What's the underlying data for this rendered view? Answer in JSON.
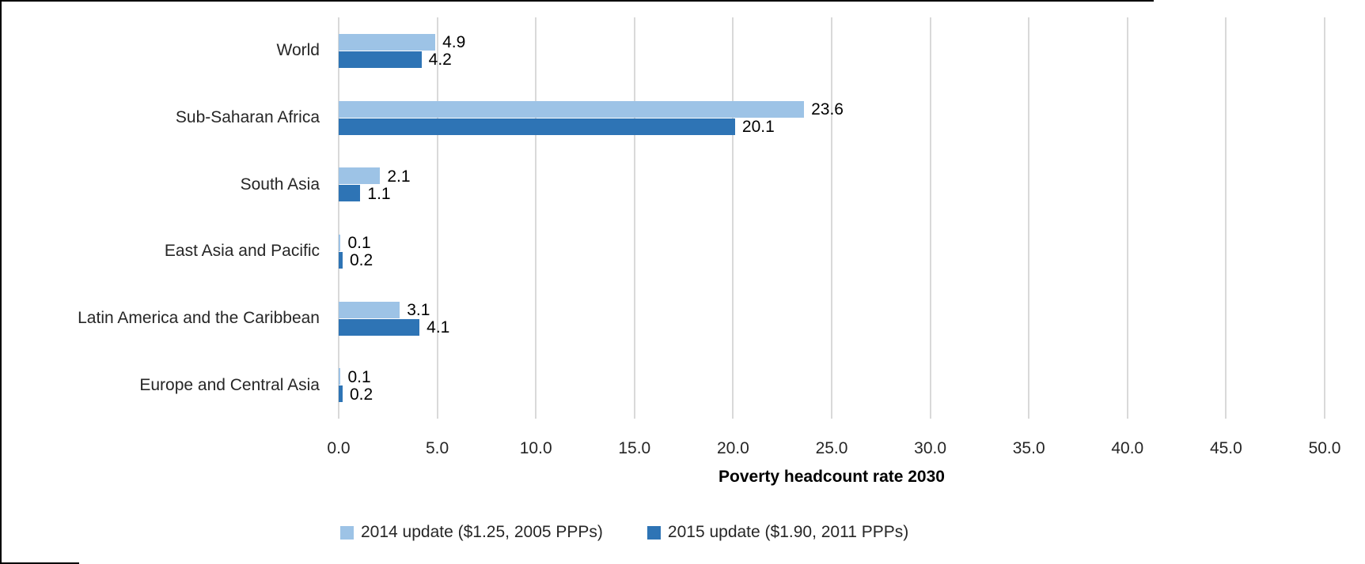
{
  "chart_data": {
    "type": "bar",
    "orientation": "horizontal",
    "title": "",
    "xlabel": "Poverty headcount rate 2030",
    "ylabel": "",
    "xlim": [
      0,
      50
    ],
    "xticks": [
      "0.0",
      "5.0",
      "10.0",
      "15.0",
      "20.0",
      "25.0",
      "30.0",
      "35.0",
      "40.0",
      "45.0",
      "50.0"
    ],
    "grid": "vertical",
    "legend_position": "bottom",
    "categories": [
      "World",
      "Sub-Saharan Africa",
      "South Asia",
      "East Asia and Pacific",
      "Latin America and the Caribbean",
      "Europe and Central Asia"
    ],
    "series": [
      {
        "name": "2014 update ($1.25, 2005 PPPs)",
        "color": "#9DC3E6",
        "values": [
          4.9,
          23.6,
          2.1,
          0.1,
          3.1,
          0.1
        ]
      },
      {
        "name": "2015 update ($1.90, 2011 PPPs)",
        "color": "#2E74B5",
        "values": [
          4.2,
          20.1,
          1.1,
          0.2,
          4.1,
          0.2
        ]
      }
    ],
    "colors": {
      "gridline": "#D9D9D9",
      "axis_text": "#262626",
      "data_label": "#000000",
      "frame": "#000000"
    }
  }
}
